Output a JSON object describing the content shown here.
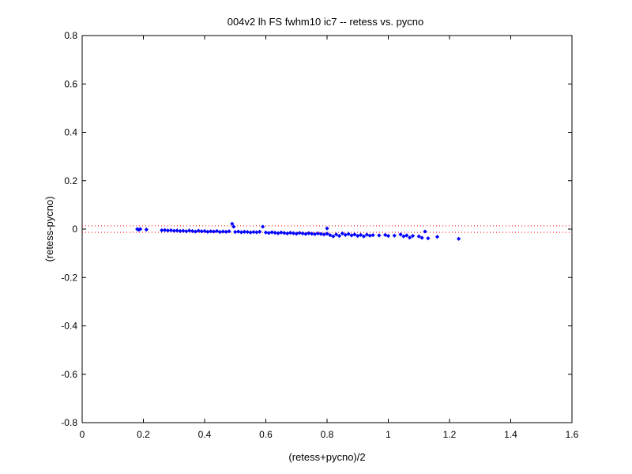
{
  "chart_data": {
    "type": "scatter",
    "title": "004v2 lh FS fwhm10 ic7 -- retess vs. pycno",
    "xlabel": "(retess+pycno)/2",
    "ylabel": "(retess-pycno)",
    "xlim": [
      0,
      1.6
    ],
    "ylim": [
      -0.8,
      0.8
    ],
    "xticks": [
      "0",
      "0.2",
      "0.4",
      "0.6",
      "0.8",
      "1",
      "1.2",
      "1.4",
      "1.6"
    ],
    "yticks": [
      "-0.8",
      "-0.6",
      "-0.4",
      "-0.2",
      "0",
      "0.2",
      "0.4",
      "0.6",
      "0.8"
    ],
    "grid": false,
    "series": [
      {
        "color": "#0000ff",
        "marker": "diamond",
        "points": [
          [
            0.18,
            0.0
          ],
          [
            0.185,
            -0.003
          ],
          [
            0.19,
            0.0
          ],
          [
            0.21,
            -0.002
          ],
          [
            0.26,
            -0.005
          ],
          [
            0.27,
            -0.004
          ],
          [
            0.28,
            -0.006
          ],
          [
            0.29,
            -0.005
          ],
          [
            0.3,
            -0.007
          ],
          [
            0.31,
            -0.006
          ],
          [
            0.32,
            -0.008
          ],
          [
            0.33,
            -0.007
          ],
          [
            0.34,
            -0.009
          ],
          [
            0.35,
            -0.006
          ],
          [
            0.36,
            -0.008
          ],
          [
            0.37,
            -0.01
          ],
          [
            0.38,
            -0.007
          ],
          [
            0.39,
            -0.009
          ],
          [
            0.4,
            -0.008
          ],
          [
            0.41,
            -0.011
          ],
          [
            0.42,
            -0.009
          ],
          [
            0.43,
            -0.01
          ],
          [
            0.44,
            -0.008
          ],
          [
            0.45,
            -0.012
          ],
          [
            0.46,
            -0.01
          ],
          [
            0.47,
            -0.011
          ],
          [
            0.48,
            -0.009
          ],
          [
            0.49,
            0.022
          ],
          [
            0.495,
            0.01
          ],
          [
            0.5,
            -0.012
          ],
          [
            0.51,
            -0.01
          ],
          [
            0.52,
            -0.013
          ],
          [
            0.53,
            -0.011
          ],
          [
            0.54,
            -0.012
          ],
          [
            0.55,
            -0.014
          ],
          [
            0.56,
            -0.012
          ],
          [
            0.57,
            -0.013
          ],
          [
            0.58,
            -0.011
          ],
          [
            0.59,
            0.01
          ],
          [
            0.6,
            -0.014
          ],
          [
            0.61,
            -0.016
          ],
          [
            0.62,
            -0.013
          ],
          [
            0.63,
            -0.015
          ],
          [
            0.64,
            -0.017
          ],
          [
            0.65,
            -0.014
          ],
          [
            0.66,
            -0.016
          ],
          [
            0.67,
            -0.018
          ],
          [
            0.68,
            -0.015
          ],
          [
            0.69,
            -0.017
          ],
          [
            0.7,
            -0.019
          ],
          [
            0.71,
            -0.016
          ],
          [
            0.72,
            -0.018
          ],
          [
            0.73,
            -0.02
          ],
          [
            0.74,
            -0.017
          ],
          [
            0.75,
            -0.019
          ],
          [
            0.76,
            -0.021
          ],
          [
            0.77,
            -0.018
          ],
          [
            0.78,
            -0.02
          ],
          [
            0.79,
            -0.022
          ],
          [
            0.8,
            -0.019
          ],
          [
            0.8,
            0.003
          ],
          [
            0.81,
            -0.025
          ],
          [
            0.82,
            -0.03
          ],
          [
            0.83,
            -0.022
          ],
          [
            0.84,
            -0.028
          ],
          [
            0.85,
            -0.018
          ],
          [
            0.86,
            -0.024
          ],
          [
            0.87,
            -0.02
          ],
          [
            0.88,
            -0.026
          ],
          [
            0.89,
            -0.022
          ],
          [
            0.9,
            -0.028
          ],
          [
            0.91,
            -0.024
          ],
          [
            0.92,
            -0.03
          ],
          [
            0.93,
            -0.023
          ],
          [
            0.94,
            -0.027
          ],
          [
            0.95,
            -0.025
          ],
          [
            0.97,
            -0.026
          ],
          [
            0.99,
            -0.024
          ],
          [
            1.0,
            -0.028
          ],
          [
            1.02,
            -0.027
          ],
          [
            1.04,
            -0.022
          ],
          [
            1.05,
            -0.03
          ],
          [
            1.06,
            -0.026
          ],
          [
            1.07,
            -0.035
          ],
          [
            1.08,
            -0.028
          ],
          [
            1.1,
            -0.03
          ],
          [
            1.11,
            -0.036
          ],
          [
            1.12,
            -0.01
          ],
          [
            1.13,
            -0.038
          ],
          [
            1.16,
            -0.032
          ],
          [
            1.23,
            -0.04
          ]
        ]
      }
    ],
    "reference_lines": [
      {
        "y": 0.0133,
        "color": "#ff0000",
        "style": "dotted"
      },
      {
        "y": -0.0133,
        "color": "#ff0000",
        "style": "dotted"
      }
    ]
  }
}
